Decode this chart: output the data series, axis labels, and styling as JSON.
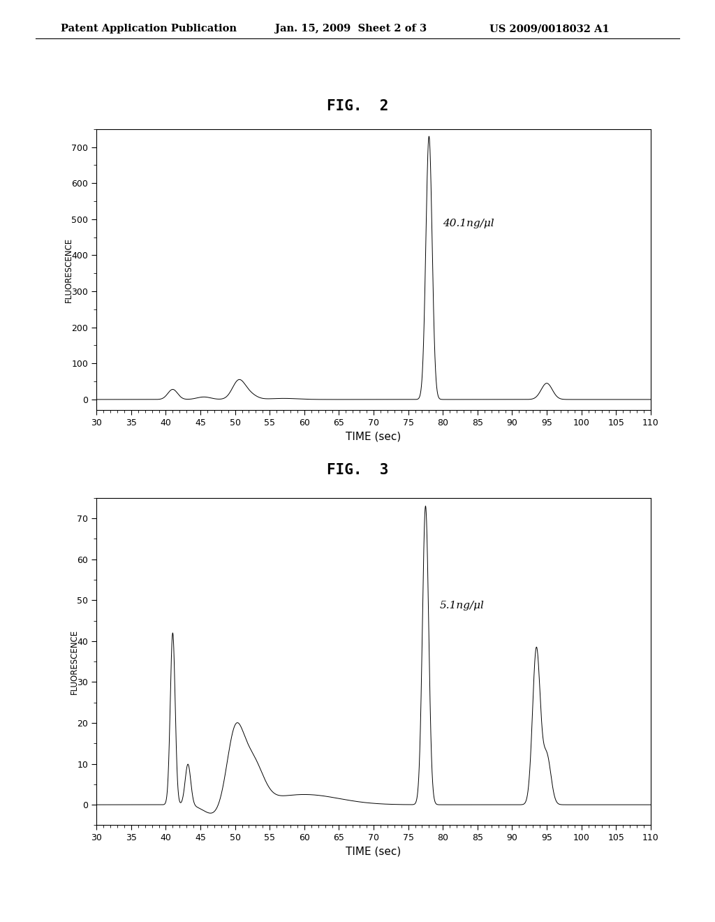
{
  "fig2_title": "FIG.  2",
  "fig3_title": "FIG.  3",
  "header_left": "Patent Application Publication",
  "header_mid": "Jan. 15, 2009  Sheet 2 of 3",
  "header_right": "US 2009/0018032 A1",
  "xlabel": "TIME (sec)",
  "ylabel": "FLUORESCENCE",
  "xmin": 30,
  "xmax": 110,
  "xticks": [
    30,
    35,
    40,
    45,
    50,
    55,
    60,
    65,
    70,
    75,
    80,
    85,
    90,
    95,
    100,
    105,
    110
  ],
  "fig2_annotation": "40.1ng/μl",
  "fig3_annotation": "5.1ng/μl",
  "fig2_ylim": [
    -30,
    750
  ],
  "fig2_yticks": [
    0,
    100,
    200,
    300,
    400,
    500,
    600,
    700
  ],
  "fig3_ylim": [
    -5,
    75
  ],
  "fig3_yticks": [
    0,
    10,
    20,
    30,
    40,
    50,
    60,
    70
  ],
  "line_color": "#000000",
  "bg_color": "#ffffff",
  "plot_bg": "#ffffff"
}
